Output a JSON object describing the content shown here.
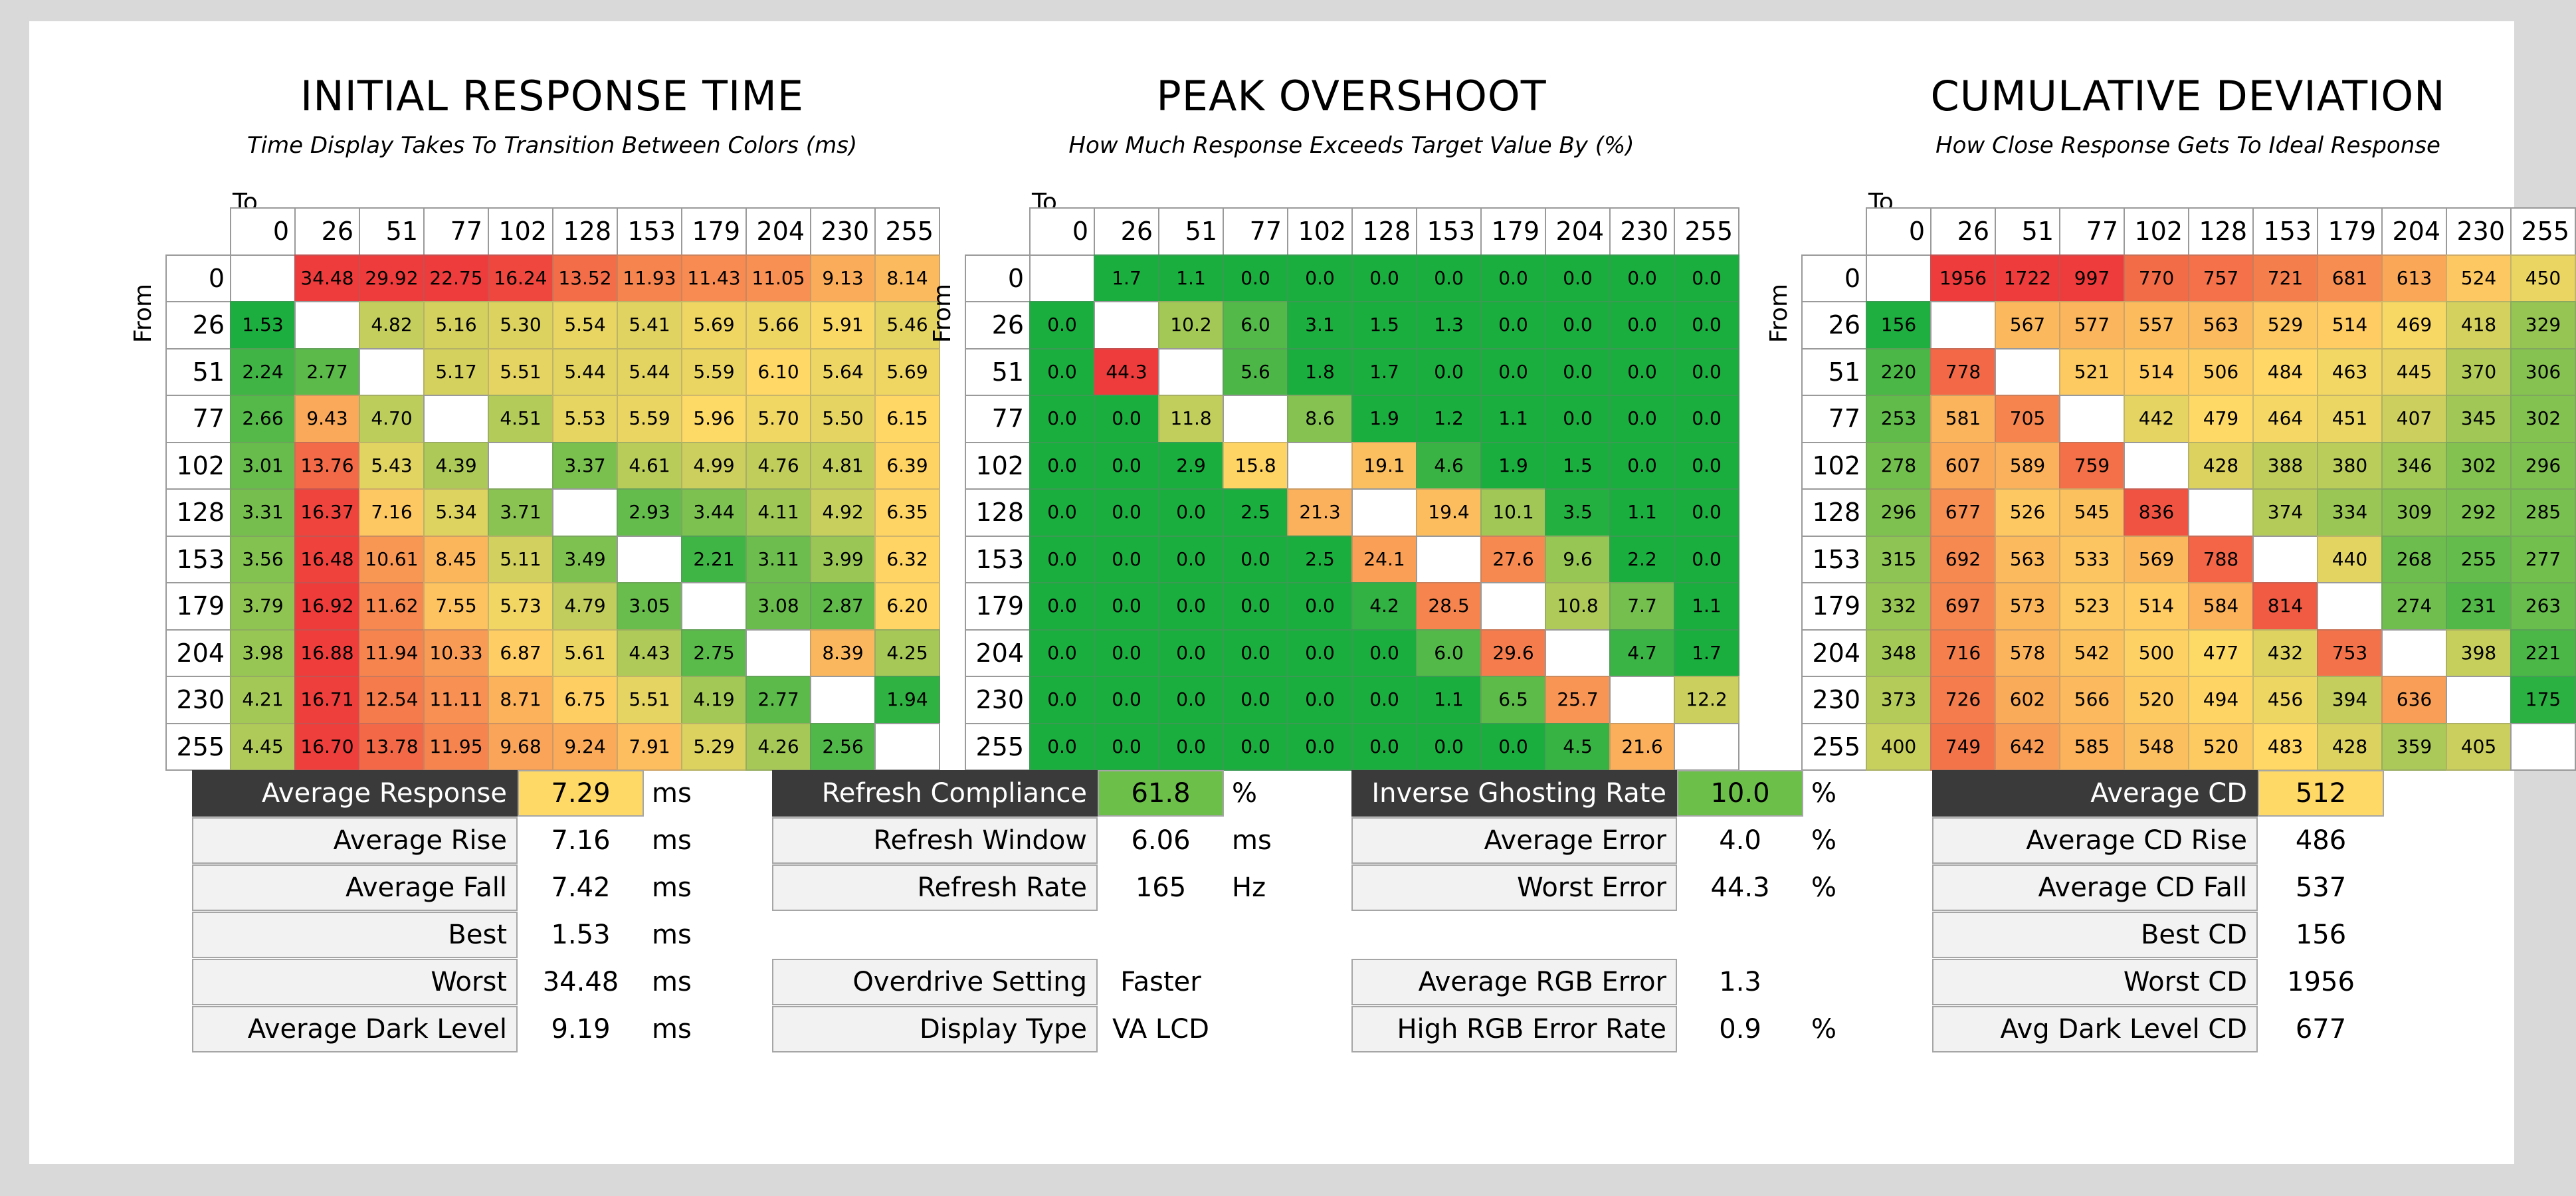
{
  "chart_data": [
    {
      "type": "heatmap",
      "title": "INITIAL RESPONSE TIME",
      "subtitle": "Time Display Takes To Transition Between Colors (ms)",
      "xlabel": "To",
      "ylabel": "From",
      "categories": [
        "0",
        "26",
        "51",
        "77",
        "102",
        "128",
        "153",
        "179",
        "204",
        "230",
        "255"
      ],
      "values": [
        [
          null,
          "34.48",
          "29.92",
          "22.75",
          "16.24",
          "13.52",
          "11.93",
          "11.43",
          "11.05",
          "9.13",
          "8.14"
        ],
        [
          "1.53",
          null,
          "4.82",
          "5.16",
          "5.30",
          "5.54",
          "5.41",
          "5.69",
          "5.66",
          "5.91",
          "5.46"
        ],
        [
          "2.24",
          "2.77",
          null,
          "5.17",
          "5.51",
          "5.44",
          "5.44",
          "5.59",
          "6.10",
          "5.64",
          "5.69"
        ],
        [
          "2.66",
          "9.43",
          "4.70",
          null,
          "4.51",
          "5.53",
          "5.59",
          "5.96",
          "5.70",
          "5.50",
          "6.15"
        ],
        [
          "3.01",
          "13.76",
          "5.43",
          "4.39",
          null,
          "3.37",
          "4.61",
          "4.99",
          "4.76",
          "4.81",
          "6.39"
        ],
        [
          "3.31",
          "16.37",
          "7.16",
          "5.34",
          "3.71",
          null,
          "2.93",
          "3.44",
          "4.11",
          "4.92",
          "6.35"
        ],
        [
          "3.56",
          "16.48",
          "10.61",
          "8.45",
          "5.11",
          "3.49",
          null,
          "2.21",
          "3.11",
          "3.99",
          "6.32"
        ],
        [
          "3.79",
          "16.92",
          "11.62",
          "7.55",
          "5.73",
          "4.79",
          "3.05",
          null,
          "3.08",
          "2.87",
          "6.20"
        ],
        [
          "3.98",
          "16.88",
          "11.94",
          "10.33",
          "6.87",
          "5.61",
          "4.43",
          "2.75",
          null,
          "8.39",
          "4.25"
        ],
        [
          "4.21",
          "16.71",
          "12.54",
          "11.11",
          "8.71",
          "6.75",
          "5.51",
          "4.19",
          "2.77",
          null,
          "1.94"
        ],
        [
          "4.45",
          "16.70",
          "13.78",
          "11.95",
          "9.68",
          "9.24",
          "7.91",
          "5.29",
          "4.26",
          "2.56",
          null
        ]
      ],
      "color_scale": {
        "good": 1.5,
        "mid": 6.0,
        "bad": 17.0
      }
    },
    {
      "type": "heatmap",
      "title": "PEAK OVERSHOOT",
      "subtitle": "How Much Response Exceeds Target Value By (%)",
      "xlabel": "To",
      "ylabel": "From",
      "categories": [
        "0",
        "26",
        "51",
        "77",
        "102",
        "128",
        "153",
        "179",
        "204",
        "230",
        "255"
      ],
      "values": [
        [
          null,
          "1.7",
          "1.1",
          "0.0",
          "0.0",
          "0.0",
          "0.0",
          "0.0",
          "0.0",
          "0.0",
          "0.0"
        ],
        [
          "0.0",
          null,
          "10.2",
          "6.0",
          "3.1",
          "1.5",
          "1.3",
          "0.0",
          "0.0",
          "0.0",
          "0.0"
        ],
        [
          "0.0",
          "44.3",
          null,
          "5.6",
          "1.8",
          "1.7",
          "0.0",
          "0.0",
          "0.0",
          "0.0",
          "0.0"
        ],
        [
          "0.0",
          "0.0",
          "11.8",
          null,
          "8.6",
          "1.9",
          "1.2",
          "1.1",
          "0.0",
          "0.0",
          "0.0"
        ],
        [
          "0.0",
          "0.0",
          "2.9",
          "15.8",
          null,
          "19.1",
          "4.6",
          "1.9",
          "1.5",
          "0.0",
          "0.0"
        ],
        [
          "0.0",
          "0.0",
          "0.0",
          "2.5",
          "21.3",
          null,
          "19.4",
          "10.1",
          "3.5",
          "1.1",
          "0.0"
        ],
        [
          "0.0",
          "0.0",
          "0.0",
          "0.0",
          "2.5",
          "24.1",
          null,
          "27.6",
          "9.6",
          "2.2",
          "0.0"
        ],
        [
          "0.0",
          "0.0",
          "0.0",
          "0.0",
          "0.0",
          "4.2",
          "28.5",
          null,
          "10.8",
          "7.7",
          "1.1"
        ],
        [
          "0.0",
          "0.0",
          "0.0",
          "0.0",
          "0.0",
          "0.0",
          "6.0",
          "29.6",
          null,
          "4.7",
          "1.7"
        ],
        [
          "0.0",
          "0.0",
          "0.0",
          "0.0",
          "0.0",
          "0.0",
          "1.1",
          "6.5",
          "25.7",
          null,
          "12.2"
        ],
        [
          "0.0",
          "0.0",
          "0.0",
          "0.0",
          "0.0",
          "0.0",
          "0.0",
          "0.0",
          "4.5",
          "21.6",
          null
        ]
      ],
      "color_scale": {
        "good": 3.0,
        "mid": 15.0,
        "bad": 40.0
      }
    },
    {
      "type": "heatmap",
      "title": "CUMULATIVE DEVIATION",
      "subtitle": "How Close Response Gets To Ideal Response",
      "xlabel": "To",
      "ylabel": "From",
      "categories": [
        "0",
        "26",
        "51",
        "77",
        "102",
        "128",
        "153",
        "179",
        "204",
        "230",
        "255"
      ],
      "values": [
        [
          null,
          "1956",
          "1722",
          "997",
          "770",
          "757",
          "721",
          "681",
          "613",
          "524",
          "450"
        ],
        [
          "156",
          null,
          "567",
          "577",
          "557",
          "563",
          "529",
          "514",
          "469",
          "418",
          "329"
        ],
        [
          "220",
          "778",
          null,
          "521",
          "514",
          "506",
          "484",
          "463",
          "445",
          "370",
          "306"
        ],
        [
          "253",
          "581",
          "705",
          null,
          "442",
          "479",
          "464",
          "451",
          "407",
          "345",
          "302"
        ],
        [
          "278",
          "607",
          "589",
          "759",
          null,
          "428",
          "388",
          "380",
          "346",
          "302",
          "296"
        ],
        [
          "296",
          "677",
          "526",
          "545",
          "836",
          null,
          "374",
          "334",
          "309",
          "292",
          "285"
        ],
        [
          "315",
          "692",
          "563",
          "533",
          "569",
          "788",
          null,
          "440",
          "268",
          "255",
          "277"
        ],
        [
          "332",
          "697",
          "573",
          "523",
          "514",
          "584",
          "814",
          null,
          "274",
          "231",
          "263"
        ],
        [
          "348",
          "716",
          "578",
          "542",
          "500",
          "477",
          "432",
          "753",
          null,
          "398",
          "221"
        ],
        [
          "373",
          "726",
          "602",
          "566",
          "520",
          "494",
          "456",
          "394",
          "636",
          null,
          "175"
        ],
        [
          "400",
          "749",
          "642",
          "585",
          "548",
          "520",
          "483",
          "428",
          "359",
          "405",
          null
        ]
      ],
      "color_scale": {
        "good": 150,
        "mid": 480,
        "bad": 900
      }
    }
  ],
  "stats": {
    "response": [
      {
        "label": "Average Response",
        "value": "7.29",
        "unit": "ms",
        "style": "yellow",
        "header": true
      },
      {
        "label": "Average Rise",
        "value": "7.16",
        "unit": "ms"
      },
      {
        "label": "Average Fall",
        "value": "7.42",
        "unit": "ms"
      },
      {
        "label": "Best",
        "value": "1.53",
        "unit": "ms"
      },
      {
        "label": "Worst",
        "value": "34.48",
        "unit": "ms"
      },
      {
        "label": "Average Dark Level",
        "value": "9.19",
        "unit": "ms"
      }
    ],
    "refresh": [
      {
        "label": "Refresh Compliance",
        "value": "61.8",
        "unit": "%",
        "style": "green",
        "header": true
      },
      {
        "label": "Refresh Window",
        "value": "6.06",
        "unit": "ms"
      },
      {
        "label": "Refresh Rate",
        "value": "165",
        "unit": "Hz"
      },
      null,
      {
        "label": "Overdrive Setting",
        "value": "Faster",
        "unit": ""
      },
      {
        "label": "Display Type",
        "value": "VA LCD",
        "unit": ""
      }
    ],
    "overshoot": [
      {
        "label": "Inverse Ghosting Rate",
        "value": "10.0",
        "unit": "%",
        "style": "green",
        "header": true
      },
      {
        "label": "Average Error",
        "value": "4.0",
        "unit": "%"
      },
      {
        "label": "Worst Error",
        "value": "44.3",
        "unit": "%"
      },
      null,
      {
        "label": "Average RGB Error",
        "value": "1.3",
        "unit": ""
      },
      {
        "label": "High RGB Error Rate",
        "value": "0.9",
        "unit": "%"
      }
    ],
    "cd": [
      {
        "label": "Average CD",
        "value": "512",
        "unit": "",
        "style": "yellow",
        "header": true
      },
      {
        "label": "Average CD Rise",
        "value": "486",
        "unit": ""
      },
      {
        "label": "Average CD Fall",
        "value": "537",
        "unit": ""
      },
      {
        "label": "Best CD",
        "value": "156",
        "unit": ""
      },
      {
        "label": "Worst CD",
        "value": "1956",
        "unit": ""
      },
      {
        "label": "Avg Dark Level CD",
        "value": "677",
        "unit": ""
      }
    ]
  },
  "colors": {
    "good": "#1aae3f",
    "mid": "#ffd966",
    "bad": "#ee3b3b",
    "stat_header_bg": "#3a3a3a"
  }
}
